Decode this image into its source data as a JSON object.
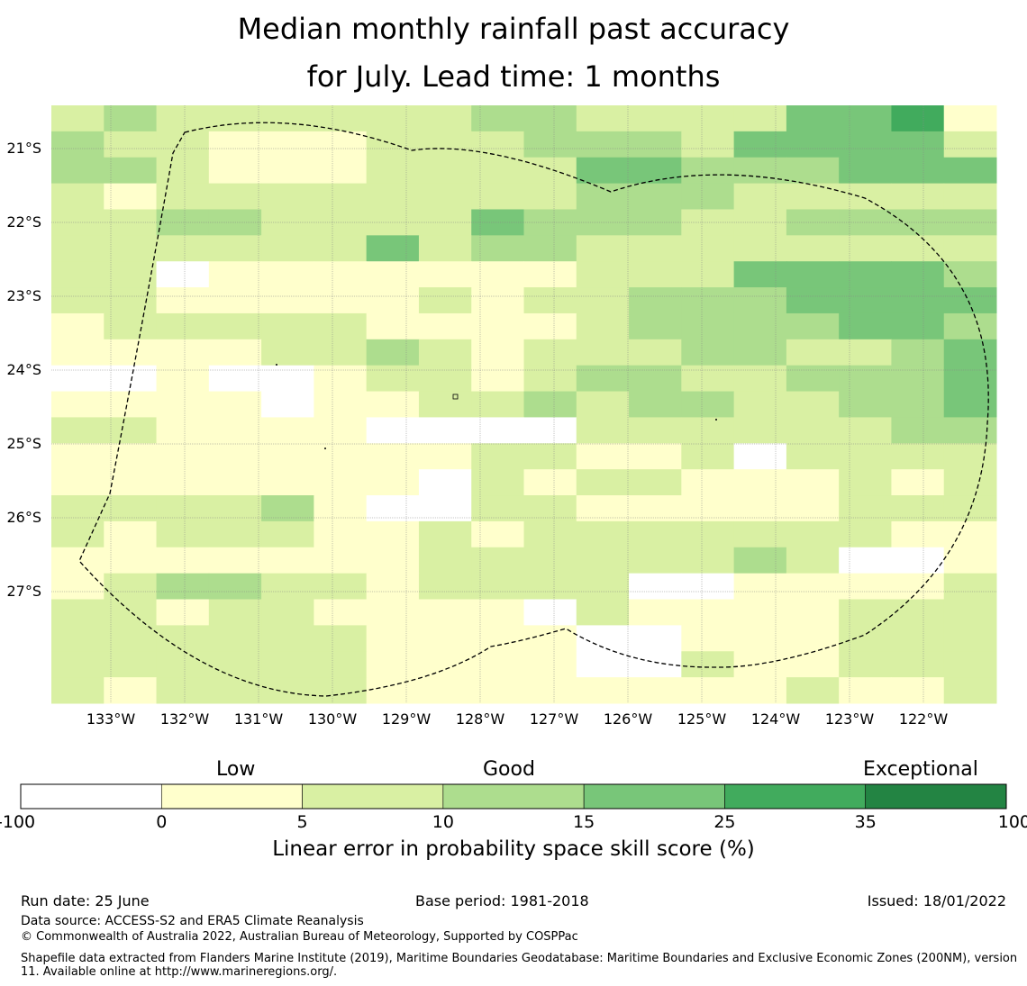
{
  "title": {
    "line1": "Median monthly rainfall past accuracy",
    "line2": "for July. Lead time: 1 months"
  },
  "map": {
    "lat_labels": [
      "21°S",
      "22°S",
      "23°S",
      "24°S",
      "25°S",
      "26°S",
      "27°S"
    ],
    "lon_labels": [
      "133°W",
      "132°W",
      "131°W",
      "130°W",
      "129°W",
      "128°W",
      "127°W",
      "126°W",
      "125°W",
      "124°W",
      "123°W",
      "122°W"
    ],
    "colors": [
      "#ffffff",
      "#ffffcc",
      "#d9f0a3",
      "#addd8e",
      "#78c679",
      "#41ab5d",
      "#238443"
    ],
    "grid_codes": [
      "232222223322224451",
      "322111222333244442",
      "332111222244333444",
      "212222222233322222",
      "223322224333223333",
      "222222423322222222",
      "220111111122244443",
      "221111121223334444",
      "122222111123333443",
      "111122321222332234",
      "001001221233223334",
      "111101122323322334",
      "221111000022222233",
      "111111112211202222",
      "111111102122111212",
      "222231002211111222",
      "212221121222222211",
      "111111122222232001",
      "123322122220011112",
      "221221111021111222",
      "222222111100111222",
      "222222111100211222",
      "212222111111112112"
    ]
  },
  "colorbar": {
    "categories": [
      "Low",
      "Good",
      "Exceptional"
    ],
    "ticks": [
      "-100",
      "0",
      "5",
      "10",
      "15",
      "25",
      "35",
      "100"
    ],
    "colors": [
      "#ffffff",
      "#ffffcc",
      "#d9f0a3",
      "#addd8e",
      "#78c679",
      "#41ab5d",
      "#238443"
    ],
    "title": "Linear error in probability space skill score (%)"
  },
  "footer": {
    "run_date": "Run date: 25 June",
    "base_period": "Base period: 1981-2018",
    "issued": "Issued: 18/01/2022",
    "data_source": "Data source: ACCESS-S2 and ERA5 Climate Reanalysis",
    "copyright": "© Commonwealth of Australia 2022, Australian Bureau of Meteorology, Supported by COSPPac",
    "shapefile": "Shapefile data extracted from Flanders Marine Institute (2019), Maritime Boundaries Geodatabase: Maritime Boundaries and Exclusive Economic Zones (200NM), version 11. Available online at http://www.marineregions.org/."
  }
}
